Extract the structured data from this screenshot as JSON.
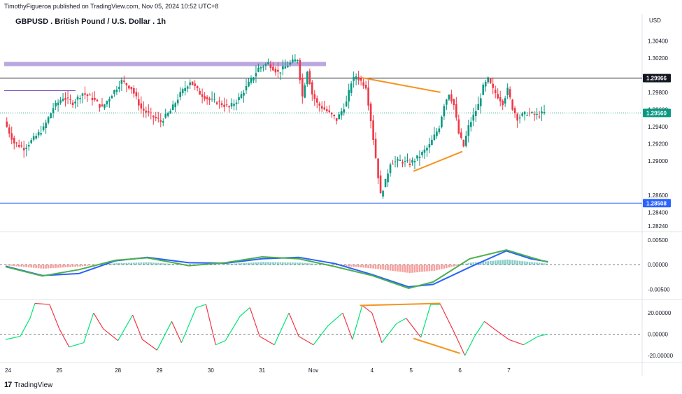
{
  "header": {
    "publish_line": "TimothyFigueroa published on TradingView.com, Nov 05, 2024 10:52 UTC+8",
    "currency_label": "USD"
  },
  "footer": {
    "logo_mark": "17",
    "brand": "TradingView"
  },
  "chart_data": [
    {
      "type": "candlestick",
      "title": "GBPUSD . British Pound / U.S. Dollar . 1h",
      "ylim": [
        1.282,
        1.3055
      ],
      "y_ticks": [
        "1.30400",
        "1.30200",
        "1.29800",
        "1.29600",
        "1.29400",
        "1.29200",
        "1.29000",
        "1.28600",
        "1.28400",
        "1.28240"
      ],
      "x_ticks": [
        "24",
        "25",
        "28",
        "29",
        "30",
        "31",
        "Nov",
        "4",
        "5",
        "6",
        "7"
      ],
      "price_tags": [
        {
          "value": 1.29966,
          "label": "1.29966",
          "color": "#131722"
        },
        {
          "value": 1.2956,
          "label": "1.29560",
          "color": "#089981"
        },
        {
          "value": 1.28508,
          "label": "1.28508",
          "color": "#2962ff"
        }
      ],
      "levels": [
        {
          "value": 1.29966,
          "color": "#131722",
          "span": "full"
        },
        {
          "value": 1.28508,
          "color": "#2962ff",
          "span": "full"
        },
        {
          "value": 1.3013,
          "color": "#b39ddb",
          "span": "partial"
        },
        {
          "value": 1.2982,
          "color": "#7e57c2",
          "span": "partial"
        }
      ],
      "price_path": [
        [
          0,
          1.2946
        ],
        [
          4,
          1.2921
        ],
        [
          8,
          1.2915
        ],
        [
          12,
          1.2926
        ],
        [
          16,
          1.2938
        ],
        [
          20,
          1.2962
        ],
        [
          24,
          1.2974
        ],
        [
          28,
          1.2968
        ],
        [
          32,
          1.2979
        ],
        [
          36,
          1.2973
        ],
        [
          40,
          1.2962
        ],
        [
          44,
          1.2978
        ],
        [
          48,
          1.2993
        ],
        [
          52,
          1.2985
        ],
        [
          56,
          1.2961
        ],
        [
          60,
          1.2953
        ],
        [
          64,
          1.2946
        ],
        [
          68,
          1.2958
        ],
        [
          72,
          1.2978
        ],
        [
          76,
          1.2993
        ],
        [
          80,
          1.2979
        ],
        [
          84,
          1.2971
        ],
        [
          88,
          1.2968
        ],
        [
          92,
          1.2962
        ],
        [
          96,
          1.2973
        ],
        [
          100,
          1.299
        ],
        [
          104,
          1.3008
        ],
        [
          108,
          1.3014
        ],
        [
          112,
          1.3003
        ],
        [
          116,
          1.3012
        ],
        [
          120,
          1.3019
        ],
        [
          122,
          1.2975
        ],
        [
          124,
          1.3006
        ],
        [
          126,
          1.2978
        ],
        [
          128,
          1.2967
        ],
        [
          132,
          1.2958
        ],
        [
          136,
          1.2948
        ],
        [
          140,
          1.2968
        ],
        [
          142,
          1.2992
        ],
        [
          144,
          1.2999
        ],
        [
          148,
          1.2987
        ],
        [
          150,
          1.2948
        ],
        [
          152,
          1.2904
        ],
        [
          154,
          1.286
        ],
        [
          156,
          1.2876
        ],
        [
          158,
          1.2898
        ],
        [
          162,
          1.29
        ],
        [
          166,
          1.2897
        ],
        [
          170,
          1.2906
        ],
        [
          174,
          1.2918
        ],
        [
          178,
          1.294
        ],
        [
          180,
          1.2966
        ],
        [
          182,
          1.2979
        ],
        [
          184,
          1.2965
        ],
        [
          186,
          1.2932
        ],
        [
          188,
          1.2917
        ],
        [
          190,
          1.294
        ],
        [
          194,
          1.2965
        ],
        [
          196,
          1.2986
        ],
        [
          198,
          1.2995
        ],
        [
          200,
          1.2983
        ],
        [
          204,
          1.2968
        ],
        [
          206,
          1.2983
        ],
        [
          208,
          1.2962
        ],
        [
          210,
          1.295
        ],
        [
          214,
          1.2956
        ],
        [
          218,
          1.2953
        ],
        [
          221,
          1.2956
        ]
      ],
      "patterns": [
        {
          "name": "upper-wedge-line",
          "points": [
            [
              146,
              1.2997
            ],
            [
              178,
              1.298
            ]
          ],
          "color": "#f7931e"
        },
        {
          "name": "lower-wedge-line",
          "points": [
            [
              167,
              1.2888
            ],
            [
              187,
              1.2911
            ]
          ],
          "color": "#f7931e"
        }
      ],
      "x_domain": [
        0,
        260
      ]
    },
    {
      "type": "line",
      "name": "oscillator-1",
      "ylim": [
        -0.0065,
        0.006
      ],
      "y_ticks": [
        {
          "v": 0.005,
          "label": "0.00500"
        },
        {
          "v": 0.0,
          "label": "0.00000"
        },
        {
          "v": -0.005,
          "label": "-0.00500"
        }
      ],
      "series": [
        {
          "color": "#2962ff",
          "values": [
            [
              0,
              -0.0003
            ],
            [
              15,
              -0.0022
            ],
            [
              30,
              -0.0018
            ],
            [
              45,
              0.0008
            ],
            [
              58,
              0.0015
            ],
            [
              75,
              0.0004
            ],
            [
              90,
              0.0003
            ],
            [
              105,
              0.0012
            ],
            [
              120,
              0.0015
            ],
            [
              135,
              0.0002
            ],
            [
              150,
              -0.002
            ],
            [
              165,
              -0.0045
            ],
            [
              175,
              -0.004
            ],
            [
              190,
              -0.0005
            ],
            [
              205,
              0.0028
            ],
            [
              215,
              0.0012
            ],
            [
              222,
              0.0006
            ]
          ]
        },
        {
          "color": "#4caf50",
          "values": [
            [
              0,
              -0.0004
            ],
            [
              15,
              -0.0023
            ],
            [
              30,
              -0.001
            ],
            [
              45,
              0.0009
            ],
            [
              58,
              0.0014
            ],
            [
              75,
              -0.0002
            ],
            [
              90,
              0.0004
            ],
            [
              105,
              0.0016
            ],
            [
              120,
              0.0012
            ],
            [
              135,
              -0.0004
            ],
            [
              150,
              -0.0022
            ],
            [
              165,
              -0.0048
            ],
            [
              175,
              -0.0035
            ],
            [
              190,
              0.0012
            ],
            [
              205,
              0.003
            ],
            [
              215,
              0.0015
            ],
            [
              222,
              0.0005
            ]
          ]
        }
      ],
      "histogram": {
        "pos_color": "#26a69a",
        "neg_color": "#ef5350"
      },
      "x_domain": [
        0,
        260
      ]
    },
    {
      "type": "line",
      "name": "oscillator-2",
      "ylim": [
        -24,
        30
      ],
      "y_ticks": [
        {
          "v": 20,
          "label": "20.00000"
        },
        {
          "v": 0,
          "label": "0.00000"
        },
        {
          "v": -20,
          "label": "-20.00000"
        }
      ],
      "series": [
        {
          "color": "#4caf50",
          "values": [
            [
              0,
              -5
            ],
            [
              6,
              -2
            ],
            [
              10,
              15
            ],
            [
              12,
              29
            ],
            [
              18,
              28
            ],
            [
              22,
              5
            ],
            [
              26,
              -12
            ],
            [
              32,
              -8
            ],
            [
              36,
              20
            ],
            [
              40,
              5
            ],
            [
              46,
              -6
            ],
            [
              52,
              18
            ],
            [
              56,
              -5
            ],
            [
              62,
              -15
            ],
            [
              68,
              12
            ],
            [
              72,
              -8
            ],
            [
              78,
              25
            ],
            [
              82,
              28
            ],
            [
              86,
              -10
            ],
            [
              90,
              -6
            ],
            [
              96,
              17
            ],
            [
              100,
              25
            ],
            [
              104,
              -2
            ],
            [
              110,
              -10
            ],
            [
              116,
              20
            ],
            [
              120,
              -2
            ],
            [
              126,
              -10
            ],
            [
              132,
              8
            ],
            [
              138,
              20
            ],
            [
              142,
              -5
            ],
            [
              146,
              27
            ],
            [
              150,
              20
            ],
            [
              154,
              -8
            ],
            [
              160,
              10
            ],
            [
              164,
              15
            ],
            [
              170,
              -3
            ],
            [
              174,
              28
            ],
            [
              178,
              28
            ],
            [
              184,
              0
            ],
            [
              188,
              -20
            ],
            [
              192,
              -2
            ],
            [
              196,
              12
            ],
            [
              200,
              5
            ],
            [
              206,
              -5
            ],
            [
              212,
              -10
            ],
            [
              218,
              -2
            ],
            [
              222,
              0
            ]
          ]
        }
      ],
      "patterns": [
        {
          "name": "upper-divergence-line",
          "points": [
            [
              145,
              27
            ],
            [
              178,
              29
            ]
          ],
          "color": "#f7931e"
        },
        {
          "name": "lower-divergence-line",
          "points": [
            [
              167,
              -4
            ],
            [
              186,
              -18
            ]
          ],
          "color": "#f7931e"
        }
      ],
      "x_domain": [
        0,
        260
      ]
    }
  ]
}
